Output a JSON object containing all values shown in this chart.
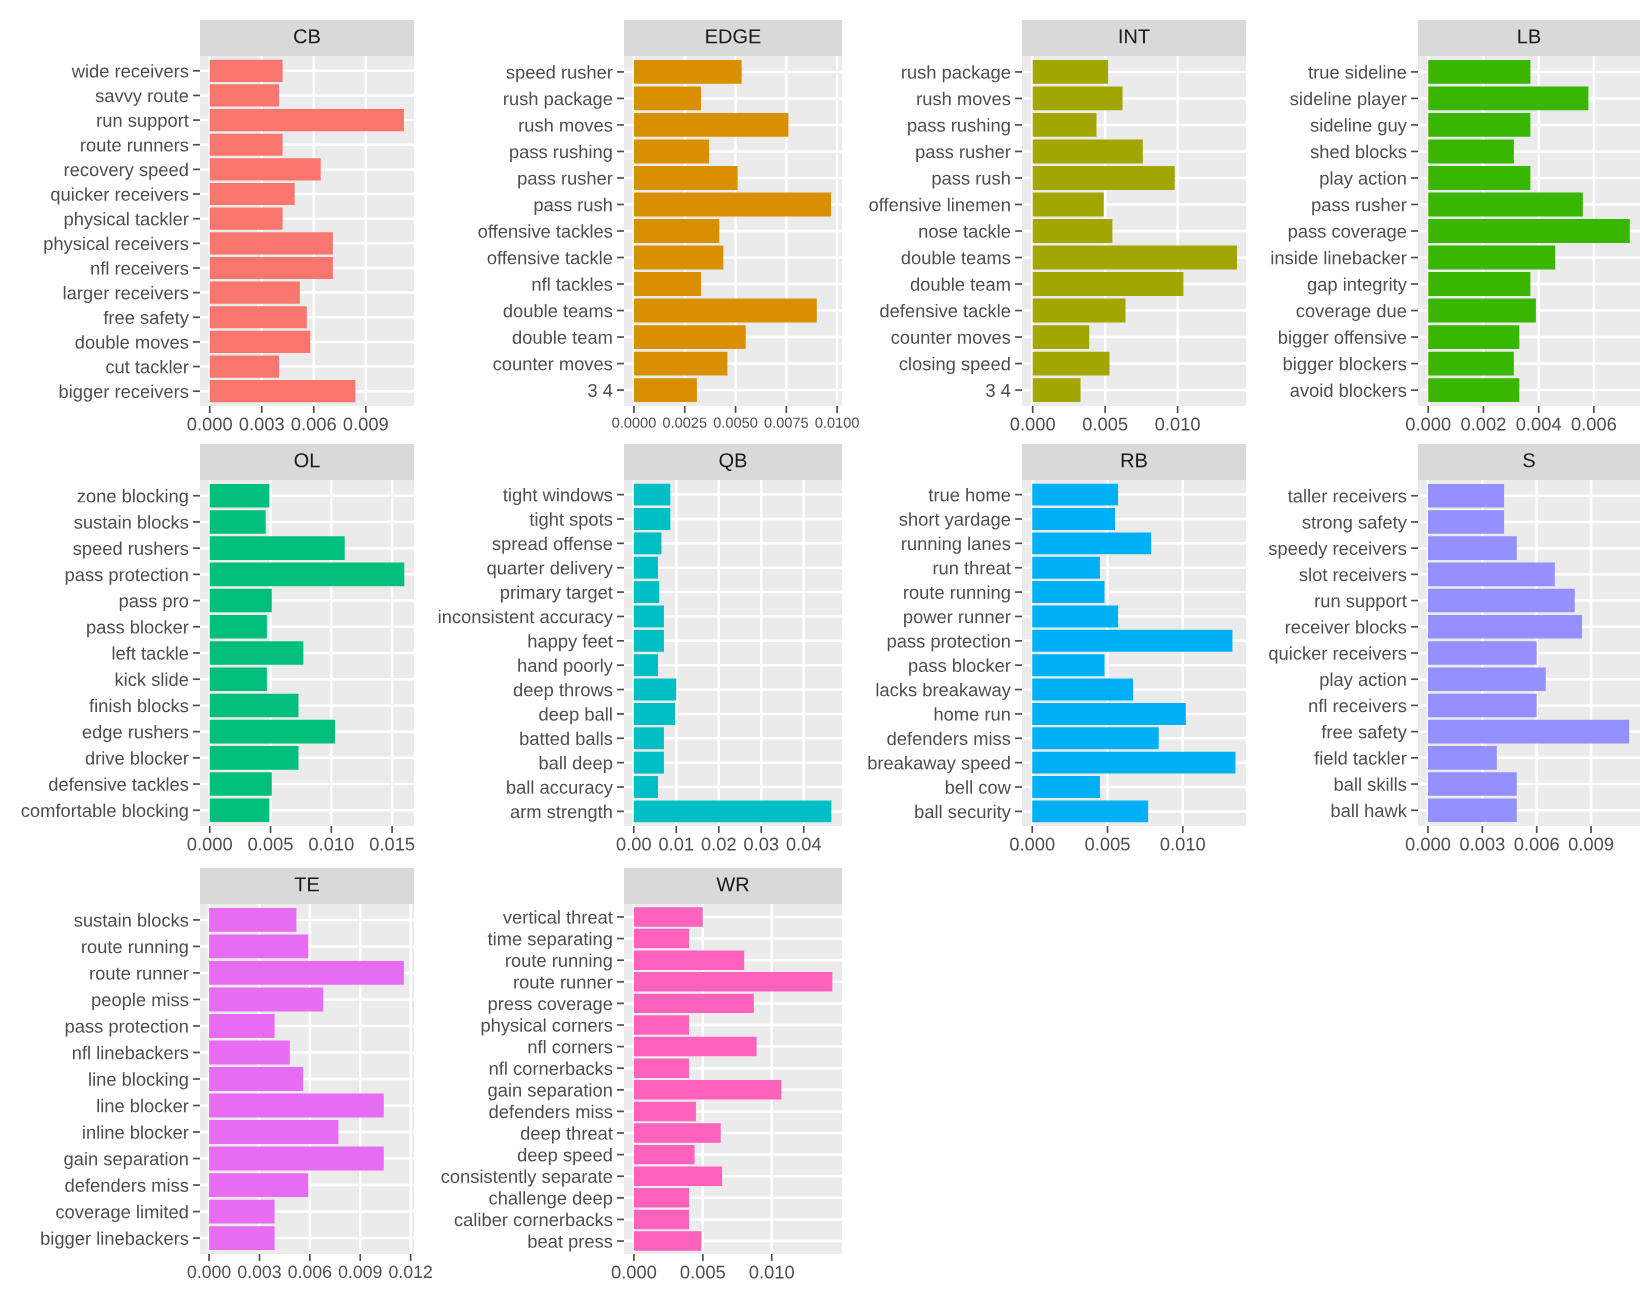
{
  "chart_data": [
    {
      "type": "bar",
      "orientation": "horizontal",
      "title": "CB",
      "color": "#f8766d",
      "grid": true,
      "categories": [
        "wide receivers",
        "savvy route",
        "run support",
        "route runners",
        "recovery speed",
        "quicker receivers",
        "physical tackler",
        "physical receivers",
        "nfl receivers",
        "larger receivers",
        "free safety",
        "double moves",
        "cut tackler",
        "bigger receivers"
      ],
      "values": [
        0.0042,
        0.004,
        0.0112,
        0.0042,
        0.0064,
        0.0049,
        0.0042,
        0.0071,
        0.0071,
        0.0052,
        0.0056,
        0.0058,
        0.004,
        0.0084
      ],
      "xlim": [
        -0.00056,
        0.01178
      ],
      "xticks": [
        {
          "value": 0,
          "label": "0.000"
        },
        {
          "value": 0.003,
          "label": "0.003"
        },
        {
          "value": 0.006,
          "label": "0.006"
        },
        {
          "value": 0.009,
          "label": "0.009"
        }
      ]
    },
    {
      "type": "bar",
      "orientation": "horizontal",
      "title": "EDGE",
      "color": "#d89000",
      "grid": true,
      "categories": [
        "speed rusher",
        "rush package",
        "rush moves",
        "pass rushing",
        "pass rusher",
        "pass rush",
        "offensive tackles",
        "offensive tackle",
        "nfl tackles",
        "double teams",
        "double team",
        "counter moves",
        "3 4"
      ],
      "values": [
        0.0053,
        0.0033,
        0.0076,
        0.0037,
        0.0051,
        0.0097,
        0.0042,
        0.0044,
        0.0033,
        0.009,
        0.0055,
        0.0046,
        0.0031
      ],
      "xlim": [
        -0.00049,
        0.01024
      ],
      "xticks": [
        {
          "value": 0,
          "label": "0.0000"
        },
        {
          "value": 0.0025,
          "label": "0.0025"
        },
        {
          "value": 0.005,
          "label": "0.0050"
        },
        {
          "value": 0.0075,
          "label": "0.0075"
        },
        {
          "value": 0.01,
          "label": "0.0100"
        }
      ]
    },
    {
      "type": "bar",
      "orientation": "horizontal",
      "title": "INT",
      "color": "#a3a500",
      "grid": true,
      "categories": [
        "rush package",
        "rush moves",
        "pass rushing",
        "pass rusher",
        "pass rush",
        "offensive linemen",
        "nose tackle",
        "double teams",
        "double team",
        "defensive tackle",
        "counter moves",
        "closing speed",
        "3 4"
      ],
      "values": [
        0.0052,
        0.0062,
        0.0044,
        0.0076,
        0.0098,
        0.0049,
        0.0055,
        0.0141,
        0.0104,
        0.0064,
        0.0039,
        0.0053,
        0.0033
      ],
      "xlim": [
        -0.00074,
        0.01472
      ],
      "xticks": [
        {
          "value": 0,
          "label": "0.000"
        },
        {
          "value": 0.005,
          "label": "0.005"
        },
        {
          "value": 0.01,
          "label": "0.010"
        }
      ]
    },
    {
      "type": "bar",
      "orientation": "horizontal",
      "title": "LB",
      "color": "#39b600",
      "grid": true,
      "categories": [
        "true sideline",
        "sideline player",
        "sideline guy",
        "shed blocks",
        "play action",
        "pass rusher",
        "pass coverage",
        "inside linebacker",
        "gap integrity",
        "coverage due",
        "bigger offensive",
        "bigger blockers",
        "avoid blockers"
      ],
      "values": [
        0.0037,
        0.0058,
        0.0037,
        0.0031,
        0.0037,
        0.0056,
        0.0073,
        0.0046,
        0.0037,
        0.0039,
        0.0033,
        0.0031,
        0.0033
      ],
      "xlim": [
        -0.00037,
        0.00767
      ],
      "xticks": [
        {
          "value": 0,
          "label": "0.000"
        },
        {
          "value": 0.002,
          "label": "0.002"
        },
        {
          "value": 0.004,
          "label": "0.004"
        },
        {
          "value": 0.006,
          "label": "0.006"
        }
      ]
    },
    {
      "type": "bar",
      "orientation": "horizontal",
      "title": "OL",
      "color": "#00bf7d",
      "grid": true,
      "categories": [
        "zone blocking",
        "sustain blocks",
        "speed rushers",
        "pass protection",
        "pass pro",
        "pass blocker",
        "left tackle",
        "kick slide",
        "finish blocks",
        "edge rushers",
        "drive blocker",
        "defensive tackles",
        "comfortable blocking"
      ],
      "values": [
        0.0049,
        0.0046,
        0.0111,
        0.016,
        0.0051,
        0.0047,
        0.0077,
        0.0047,
        0.0073,
        0.0103,
        0.0073,
        0.0051,
        0.0049
      ],
      "xlim": [
        -0.0008,
        0.0168
      ],
      "xticks": [
        {
          "value": 0,
          "label": "0.000"
        },
        {
          "value": 0.005,
          "label": "0.005"
        },
        {
          "value": 0.01,
          "label": "0.010"
        },
        {
          "value": 0.015,
          "label": "0.015"
        }
      ]
    },
    {
      "type": "bar",
      "orientation": "horizontal",
      "title": "QB",
      "color": "#00bfc4",
      "grid": true,
      "categories": [
        "tight windows",
        "tight spots",
        "spread offense",
        "quarter delivery",
        "primary target",
        "inconsistent accuracy",
        "happy feet",
        "hand poorly",
        "deep throws",
        "deep ball",
        "batted balls",
        "ball deep",
        "ball accuracy",
        "arm strength"
      ],
      "values": [
        0.0086,
        0.0086,
        0.0065,
        0.0057,
        0.006,
        0.0071,
        0.0071,
        0.0057,
        0.01,
        0.0097,
        0.0071,
        0.0071,
        0.0057,
        0.0465
      ],
      "xlim": [
        -0.0023,
        0.049
      ],
      "xticks": [
        {
          "value": 0,
          "label": "0.00"
        },
        {
          "value": 0.01,
          "label": "0.01"
        },
        {
          "value": 0.02,
          "label": "0.02"
        },
        {
          "value": 0.03,
          "label": "0.03"
        },
        {
          "value": 0.04,
          "label": "0.04"
        }
      ]
    },
    {
      "type": "bar",
      "orientation": "horizontal",
      "title": "RB",
      "color": "#00b0f6",
      "grid": true,
      "categories": [
        "true home",
        "short yardage",
        "running lanes",
        "run threat",
        "route running",
        "power runner",
        "pass protection",
        "pass blocker",
        "lacks breakaway",
        "home run",
        "defenders miss",
        "breakaway speed",
        "bell cow",
        "ball security"
      ],
      "values": [
        0.0057,
        0.0055,
        0.0079,
        0.0045,
        0.0048,
        0.0057,
        0.0133,
        0.0048,
        0.0067,
        0.0102,
        0.0084,
        0.0135,
        0.0045,
        0.0077
      ],
      "xlim": [
        -0.00068,
        0.0142
      ],
      "xticks": [
        {
          "value": 0,
          "label": "0.000"
        },
        {
          "value": 0.005,
          "label": "0.005"
        },
        {
          "value": 0.01,
          "label": "0.010"
        }
      ]
    },
    {
      "type": "bar",
      "orientation": "horizontal",
      "title": "S",
      "color": "#9590ff",
      "grid": true,
      "categories": [
        "taller receivers",
        "strong safety",
        "speedy receivers",
        "slot receivers",
        "run support",
        "receiver blocks",
        "quicker receivers",
        "play action",
        "nfl receivers",
        "free safety",
        "field tackler",
        "ball skills",
        "ball hawk"
      ],
      "values": [
        0.0042,
        0.0042,
        0.0049,
        0.007,
        0.0081,
        0.0085,
        0.006,
        0.0065,
        0.006,
        0.0111,
        0.0038,
        0.0049,
        0.0049
      ],
      "xlim": [
        -0.00055,
        0.0117
      ],
      "xticks": [
        {
          "value": 0,
          "label": "0.000"
        },
        {
          "value": 0.003,
          "label": "0.003"
        },
        {
          "value": 0.006,
          "label": "0.006"
        },
        {
          "value": 0.009,
          "label": "0.009"
        }
      ]
    },
    {
      "type": "bar",
      "orientation": "horizontal",
      "title": "TE",
      "color": "#e76bf3",
      "grid": true,
      "categories": [
        "sustain blocks",
        "route running",
        "route runner",
        "people miss",
        "pass protection",
        "nfl linebackers",
        "line blocking",
        "line blocker",
        "inline blocker",
        "gain separation",
        "defenders miss",
        "coverage limited",
        "bigger linebackers"
      ],
      "values": [
        0.0052,
        0.0059,
        0.0116,
        0.0068,
        0.0039,
        0.0048,
        0.0056,
        0.0104,
        0.0077,
        0.0104,
        0.0059,
        0.0039,
        0.0039
      ],
      "xlim": [
        -0.00054,
        0.0122
      ],
      "xticks": [
        {
          "value": 0,
          "label": "0.000"
        },
        {
          "value": 0.003,
          "label": "0.003"
        },
        {
          "value": 0.006,
          "label": "0.006"
        },
        {
          "value": 0.009,
          "label": "0.009"
        },
        {
          "value": 0.012,
          "label": "0.012"
        }
      ]
    },
    {
      "type": "bar",
      "orientation": "horizontal",
      "title": "WR",
      "color": "#ff62bc",
      "grid": true,
      "categories": [
        "vertical threat",
        "time separating",
        "route running",
        "route runner",
        "press coverage",
        "physical corners",
        "nfl corners",
        "nfl cornerbacks",
        "gain separation",
        "defenders miss",
        "deep threat",
        "deep speed",
        "consistently separate",
        "challenge deep",
        "caliber cornerbacks",
        "beat press"
      ],
      "values": [
        0.005,
        0.004,
        0.008,
        0.0144,
        0.0087,
        0.004,
        0.0089,
        0.004,
        0.0107,
        0.0045,
        0.0063,
        0.0044,
        0.0064,
        0.004,
        0.004,
        0.0049
      ],
      "xlim": [
        -0.00072,
        0.0151
      ],
      "xticks": [
        {
          "value": 0,
          "label": "0.000"
        },
        {
          "value": 0.005,
          "label": "0.005"
        },
        {
          "value": 0.01,
          "label": "0.010"
        }
      ]
    }
  ]
}
